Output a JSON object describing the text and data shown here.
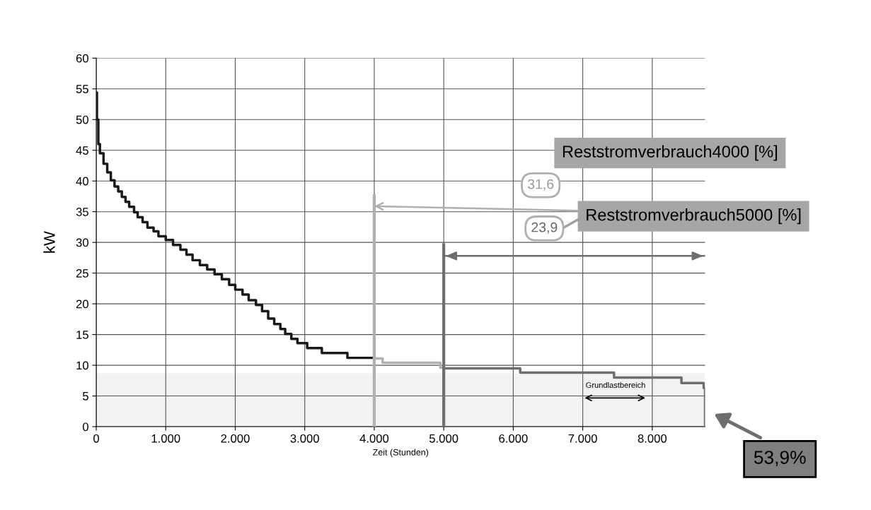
{
  "chart_data": {
    "type": "step",
    "xlabel": "Zeit (Stunden)",
    "ylabel": "kW",
    "xlim": [
      0,
      8760
    ],
    "ylim": [
      0,
      60
    ],
    "xticks": [
      0,
      {
        "value": 1000,
        "label": "1.000"
      },
      {
        "value": 2000,
        "label": "2.000"
      },
      {
        "value": 3000,
        "label": "3.000"
      },
      {
        "value": 4000,
        "label": "4.000"
      },
      {
        "value": 5000,
        "label": "5.000"
      },
      {
        "value": 6000,
        "label": "6.000"
      },
      {
        "value": 7000,
        "label": "7.000"
      },
      {
        "value": 8000,
        "label": "8.000"
      }
    ],
    "yticks": [
      0,
      5,
      10,
      15,
      20,
      25,
      30,
      35,
      40,
      45,
      50,
      55,
      60
    ],
    "grid": true,
    "legend": false,
    "bands": [
      {
        "axis": "y",
        "from": 0,
        "to": 8.7,
        "color": "#f2f2f2"
      }
    ],
    "series": [
      {
        "color": "#1a1a1a",
        "x": [
          0,
          10,
          30,
          53,
          105,
          158,
          210,
          263,
          316,
          368,
          421,
          474,
          544,
          596,
          667,
          737,
          825,
          895,
          1000,
          1105,
          1211,
          1298,
          1386,
          1491,
          1596,
          1702,
          1807,
          1912,
          2000,
          2105,
          2193,
          2298,
          2386,
          2474,
          2561,
          2649,
          2719,
          2807,
          2895,
          3035,
          3246,
          3614,
          4000
        ],
        "values": [
          54.4,
          50,
          46,
          44.5,
          42.8,
          41.4,
          40.1,
          39.1,
          38.3,
          37.4,
          36.6,
          35.8,
          34.9,
          34.1,
          33.3,
          32.4,
          31.8,
          31.0,
          30.4,
          29.6,
          28.8,
          28.0,
          27.1,
          26.3,
          25.6,
          24.8,
          24.0,
          23.1,
          22.3,
          21.5,
          20.6,
          19.8,
          18.8,
          17.6,
          16.7,
          15.9,
          15.1,
          14.3,
          13.6,
          12.8,
          12.0,
          11.2,
          11.2
        ]
      },
      {
        "color": "#b0b0b0",
        "x": [
          4000,
          4120,
          4950,
          5000
        ],
        "values": [
          11.1,
          10.4,
          9.6,
          9.6
        ]
      },
      {
        "color": "#6e6e6e",
        "x": [
          5000,
          6100,
          7450,
          8420,
          8740,
          8760
        ],
        "values": [
          9.5,
          8.8,
          8.0,
          7.1,
          6.3,
          0
        ]
      },
      {
        "type": "line",
        "color": "#b0b0b0",
        "x": [
          4000,
          4000
        ],
        "values": [
          0,
          37.6
        ]
      },
      {
        "type": "line",
        "color": "#6e6e6e",
        "x": [
          5000,
          5000
        ],
        "values": [
          0,
          29.6
        ]
      },
      {
        "type": "line",
        "color": "#6e6e6e",
        "x": [
          5000,
          8760
        ],
        "values": [
          27.8,
          27.8
        ]
      }
    ],
    "annotations": [
      "31,6",
      "23,9",
      "Grundlastbereich",
      "Reststromverbrauch4000 [%]",
      {
        "text": "Reststromverbrauch5000 [%]",
        "x": 4000,
        "y": 35.9
      },
      "53,9%"
    ]
  }
}
